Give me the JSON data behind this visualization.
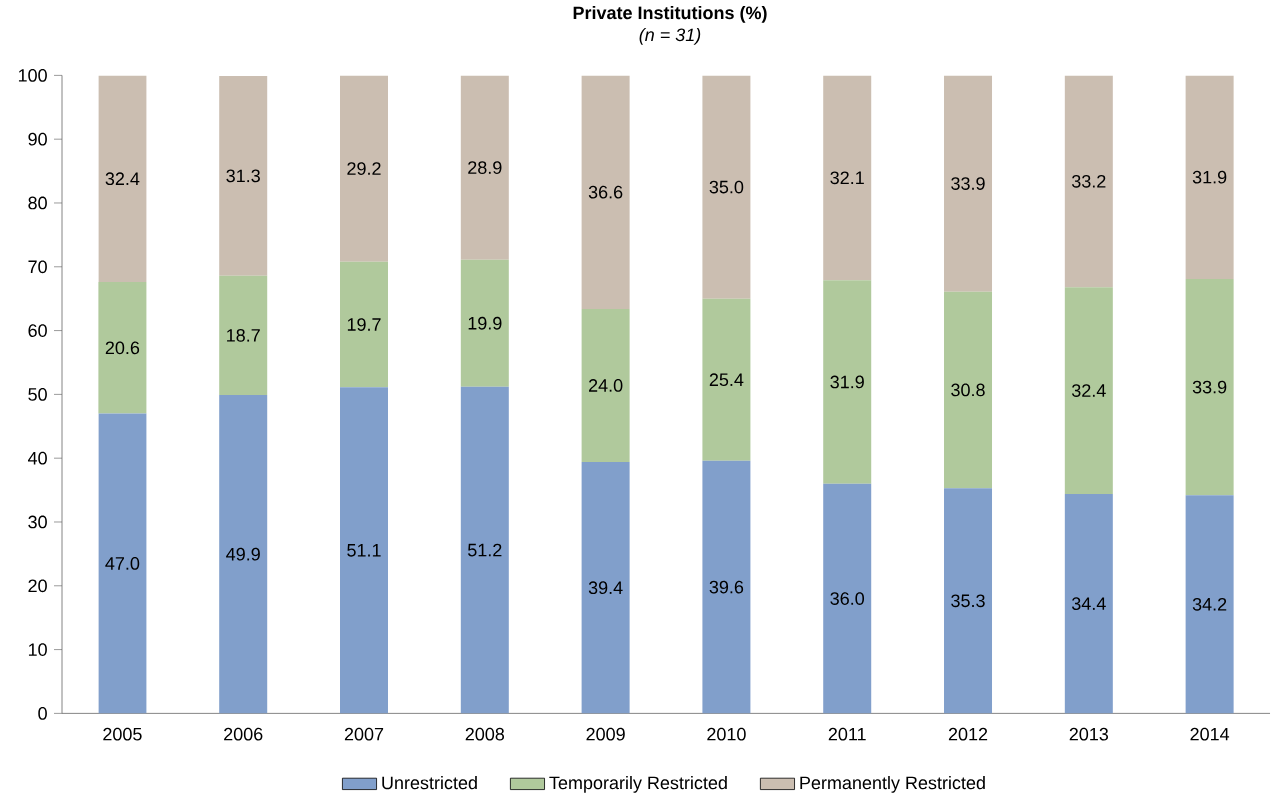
{
  "chart_data": {
    "type": "bar",
    "stacked": true,
    "title": "Private Institutions (%)",
    "subtitle": "*(n = 31)*",
    "categories": [
      "2005",
      "2006",
      "2007",
      "2008",
      "2009",
      "2010",
      "2011",
      "2012",
      "2013",
      "2014"
    ],
    "series": [
      {
        "name": "Unrestricted",
        "color": "#819fcb",
        "values": [
          47.0,
          49.9,
          51.1,
          51.2,
          39.4,
          39.6,
          36.0,
          35.3,
          34.4,
          34.2
        ],
        "value_labels": [
          "47.0",
          "49.9",
          "51.1",
          "51.2",
          "39.4",
          "39.6",
          "36.0",
          "35.3",
          "34.4",
          "34.2"
        ]
      },
      {
        "name": "Temporarily Restricted",
        "color": "#b0c99c",
        "values": [
          20.6,
          18.7,
          19.7,
          19.9,
          24.0,
          25.4,
          31.9,
          30.8,
          32.4,
          33.9
        ],
        "value_labels": [
          "20.6",
          "18.7",
          "19.7",
          "19.9",
          "24.0",
          "25.4",
          "31.9",
          "30.8",
          "32.4",
          "33.9"
        ]
      },
      {
        "name": "Permanently Restricted",
        "color": "#cbbeb1",
        "values": [
          32.4,
          31.3,
          29.2,
          28.9,
          36.6,
          35.0,
          32.1,
          33.9,
          33.2,
          31.9
        ],
        "value_labels": [
          "32.4",
          "31.3",
          "29.2",
          "28.9",
          "36.6",
          "35.0",
          "32.1",
          "33.9",
          "33.2",
          "31.9"
        ]
      }
    ],
    "ylim": [
      0,
      100
    ],
    "yticks": [
      0,
      10,
      20,
      30,
      40,
      50,
      60,
      70,
      80,
      90,
      100
    ],
    "legend": "bottom",
    "grid": false
  }
}
